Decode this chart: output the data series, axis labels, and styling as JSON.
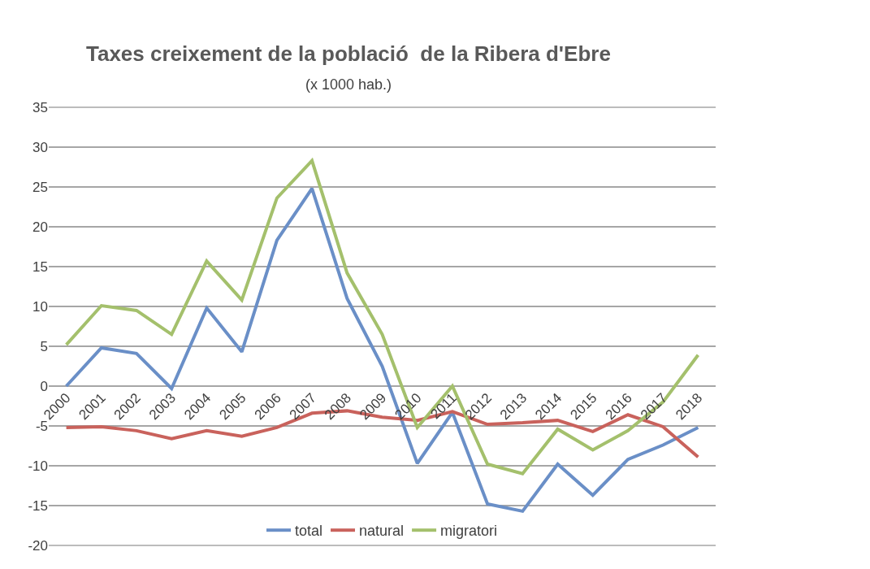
{
  "chart_data": {
    "type": "line",
    "title": "Taxes creixement de la població  de la Ribera d'Ebre",
    "subtitle": "(x 1000 hab.)",
    "categories": [
      "2000",
      "2001",
      "2002",
      "2003",
      "2004",
      "2005",
      "2006",
      "2007",
      "2008",
      "2009",
      "2010",
      "2011",
      "2012",
      "2013",
      "2014",
      "2015",
      "2016",
      "2017",
      "2018"
    ],
    "series": [
      {
        "name": "total",
        "color": "#6a8fc7",
        "values": [
          0,
          4.8,
          4.1,
          -0.3,
          9.8,
          4.3,
          18.3,
          24.8,
          11,
          2.5,
          -9.7,
          -3.3,
          -14.8,
          -15.7,
          -9.8,
          -13.7,
          -9.2,
          -7.4,
          -5.2
        ]
      },
      {
        "name": "natural",
        "color": "#c9625c",
        "values": [
          -5.2,
          -5.1,
          -5.6,
          -6.6,
          -5.6,
          -6.3,
          -5.2,
          -3.4,
          -3.1,
          -3.9,
          -4.3,
          -3.2,
          -4.8,
          -4.6,
          -4.3,
          -5.7,
          -3.6,
          -5.1,
          -8.9
        ]
      },
      {
        "name": "migratori",
        "color": "#a4c06c",
        "values": [
          5.2,
          10.1,
          9.5,
          6.5,
          15.7,
          10.8,
          23.6,
          28.3,
          14.2,
          6.5,
          -5.2,
          0,
          -9.8,
          -11,
          -5.4,
          -8,
          -5.6,
          -2,
          3.9
        ]
      }
    ],
    "ylim": [
      -20,
      35
    ],
    "yticks": [
      -20,
      -15,
      -10,
      -5,
      0,
      5,
      10,
      15,
      20,
      25,
      30,
      35
    ],
    "grid": "y",
    "legend": "bottom",
    "marker": "none",
    "line_style": "solid"
  }
}
